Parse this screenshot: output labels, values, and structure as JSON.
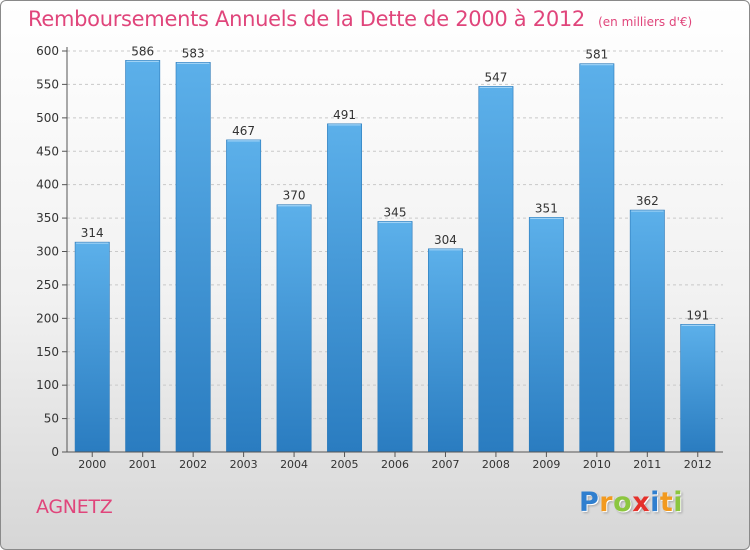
{
  "chart_data": {
    "type": "bar",
    "title": "Remboursements Annuels de la Dette de 2000 à 2012",
    "unit_note": "(en milliers d'€)",
    "categories": [
      "2000",
      "2001",
      "2002",
      "2003",
      "2004",
      "2005",
      "2006",
      "2007",
      "2008",
      "2009",
      "2010",
      "2011",
      "2012"
    ],
    "values": [
      314,
      586,
      583,
      467,
      370,
      491,
      345,
      304,
      547,
      351,
      581,
      362,
      191
    ],
    "data_labels": [
      "314",
      "586",
      "583",
      "467",
      "370",
      "491",
      "345",
      "304",
      "547",
      "351",
      "581",
      "362",
      "191"
    ],
    "ylim": [
      0,
      600
    ],
    "yticks": [
      0,
      50,
      100,
      150,
      200,
      250,
      300,
      350,
      400,
      450,
      500,
      550,
      600
    ],
    "ytick_labels": [
      "0",
      "50",
      "100",
      "150",
      "200",
      "250",
      "300",
      "350",
      "400",
      "450",
      "500",
      "550",
      "600"
    ],
    "grid": "horizontal dashed",
    "bar_color": "#3d93d6",
    "title_color": "#e0457b"
  },
  "commune": "AGNETZ",
  "logo": {
    "text": "Proxiti",
    "letters": [
      {
        "char": "P",
        "color": "#2f7fcf"
      },
      {
        "char": "r",
        "color": "#f29a1f"
      },
      {
        "char": "o",
        "color": "#8cc63f"
      },
      {
        "char": "x",
        "color": "#e4312b"
      },
      {
        "char": "i",
        "color": "#2f7fcf"
      },
      {
        "char": "t",
        "color": "#f29a1f"
      },
      {
        "char": "i",
        "color": "#8cc63f"
      }
    ]
  }
}
